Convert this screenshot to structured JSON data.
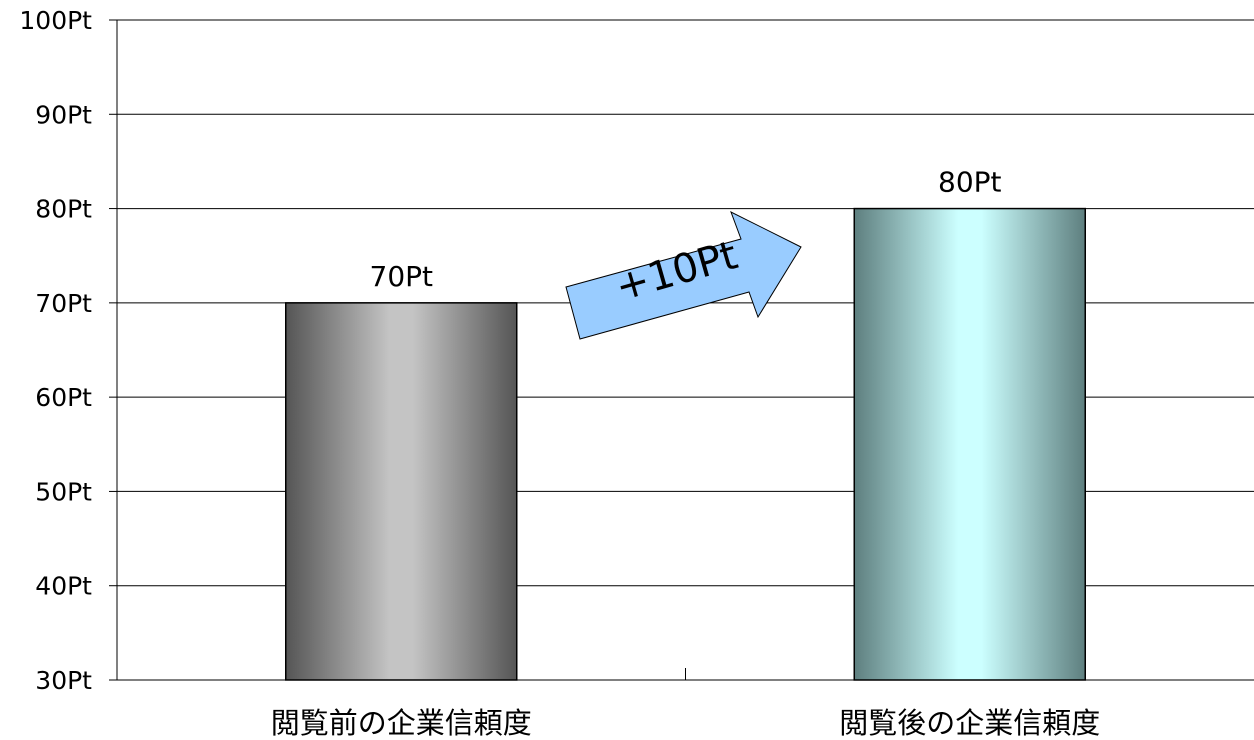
{
  "chart_data": {
    "type": "bar",
    "categories": [
      "閲覧前の企業信頼度",
      "閲覧後の企業信頼度"
    ],
    "values": [
      70,
      80
    ],
    "data_labels": [
      "70Pt",
      "80Pt"
    ],
    "ylim": [
      30,
      100
    ],
    "y_ticks": [
      100,
      90,
      80,
      70,
      60,
      50,
      40,
      30
    ],
    "y_tick_labels": [
      "100Pt",
      "90Pt",
      "80Pt",
      "70Pt",
      "60Pt",
      "50Pt",
      "40Pt",
      "30Pt"
    ],
    "grid": true,
    "legend": "none",
    "annotation": {
      "text": "+10Pt",
      "shape": "arrow",
      "fill": "#99ccff"
    },
    "bar_colors": [
      {
        "edge": "#555555",
        "center": "#c4c4c4"
      },
      {
        "edge": "#5e7f7f",
        "center": "#ccffff"
      }
    ]
  }
}
